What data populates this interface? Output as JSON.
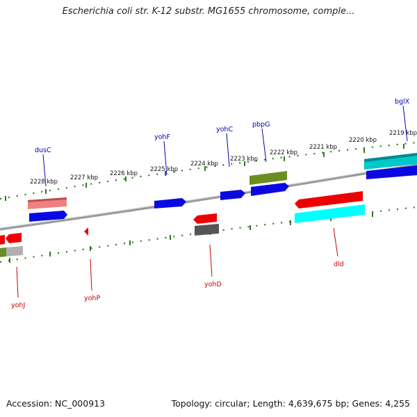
{
  "title": "Escherichia coli str. K-12 substr. MG1655 chromosome, comple...",
  "footer": {
    "accession": "Accession: NC_000913",
    "summary": "Topology: circular; Length: 4,639,675 bp; Genes: 4,255"
  },
  "ticks": [
    "2228 kbp",
    "2227 kbp",
    "2226 kbp",
    "2225 kbp",
    "2224 kbp",
    "2223 kbp",
    "2222 kbp",
    "2221 kbp",
    "2220 kbp",
    "2219 kbp"
  ],
  "genes_top": [
    {
      "name": "dusC",
      "color": "#0000aa"
    },
    {
      "name": "yohF",
      "color": "#0000aa"
    },
    {
      "name": "yohC",
      "color": "#0000aa"
    },
    {
      "name": "pbpG",
      "color": "#0000aa"
    },
    {
      "name": "bglX",
      "color": "#0000aa"
    }
  ],
  "genes_bottom": [
    {
      "name": "yohJ",
      "color": "#cc0000"
    },
    {
      "name": "yohP",
      "color": "#cc0000"
    },
    {
      "name": "yohD",
      "color": "#cc0000"
    },
    {
      "name": "dld",
      "color": "#cc0000"
    }
  ],
  "colors": {
    "backbone": "#888888",
    "tick": "#2a7a1a",
    "forward_gene": "#0000dd",
    "reverse_gene": "#ee0000"
  }
}
